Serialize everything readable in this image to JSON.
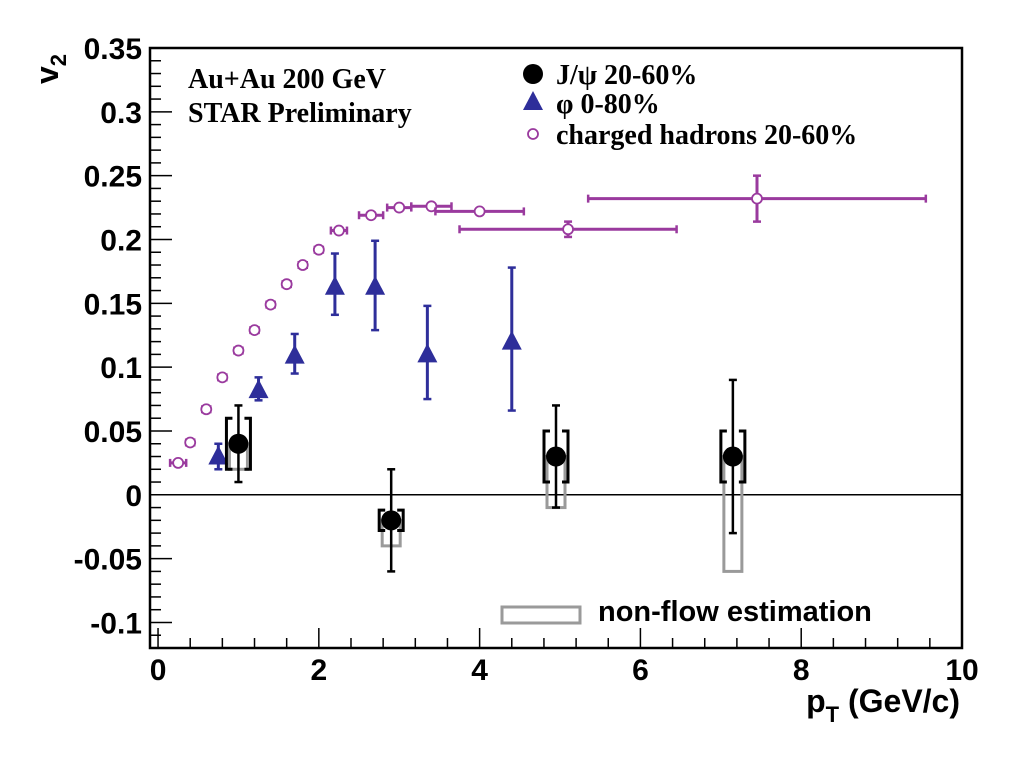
{
  "chart_data": {
    "type": "scatter",
    "title": "",
    "xlabel": "p_T (GeV/c)",
    "ylabel": "v_2",
    "xlabel_parts": {
      "main": "p",
      "sub": "T",
      "unit": " (GeV/c)"
    },
    "ylabel_parts": {
      "main": "v",
      "sub": "2"
    },
    "xlim": [
      -0.1,
      10.0
    ],
    "ylim": [
      -0.12,
      0.35
    ],
    "x_ticks": [
      0,
      2,
      4,
      6,
      8,
      10
    ],
    "x_tick_labels": [
      "0",
      "2",
      "4",
      "6",
      "8",
      "10"
    ],
    "y_ticks": [
      -0.1,
      -0.05,
      0,
      0.05,
      0.1,
      0.15,
      0.2,
      0.25,
      0.3,
      0.35
    ],
    "y_tick_labels": [
      "-0.1",
      "-0.05",
      "0",
      "0.05",
      "0.1",
      "0.15",
      "0.2",
      "0.25",
      "0.3",
      "0.35"
    ],
    "annotations": [
      "Au+Au 200 GeV",
      "STAR Preliminary"
    ],
    "legend_position": "top-right",
    "nonflow_label": "non-flow estimation",
    "colors": {
      "jpsi": "#000000",
      "phi": "#2e2e9a",
      "hadrons": "#9a3a9e",
      "nonflow": "#9a9a9a"
    },
    "series": [
      {
        "name": "J/ψ 20-60%",
        "marker": "filled-circle",
        "points": [
          {
            "x": 1.0,
            "y": 0.04,
            "x_err": 0.0,
            "y_err_low": 0.03,
            "y_err_high": 0.03,
            "sys_low": 0.02,
            "sys_high": 0.06,
            "nonflow_low": 0.02,
            "nonflow_high": 0.04
          },
          {
            "x": 2.9,
            "y": -0.02,
            "x_err": 0.0,
            "y_err_low": 0.04,
            "y_err_high": 0.04,
            "sys_low": -0.028,
            "sys_high": -0.012,
            "nonflow_low": -0.04,
            "nonflow_high": -0.02
          },
          {
            "x": 4.95,
            "y": 0.03,
            "x_err": 0.0,
            "y_err_low": 0.04,
            "y_err_high": 0.04,
            "sys_low": 0.01,
            "sys_high": 0.05,
            "nonflow_low": -0.01,
            "nonflow_high": 0.03
          },
          {
            "x": 7.15,
            "y": 0.03,
            "x_err": 0.0,
            "y_err_low": 0.06,
            "y_err_high": 0.06,
            "sys_low": 0.01,
            "sys_high": 0.05,
            "nonflow_low": -0.06,
            "nonflow_high": 0.03
          }
        ]
      },
      {
        "name": "φ 0-80%",
        "marker": "filled-triangle",
        "points": [
          {
            "x": 0.75,
            "y": 0.03,
            "y_err_low": 0.01,
            "y_err_high": 0.01
          },
          {
            "x": 1.25,
            "y": 0.082,
            "y_err_low": 0.008,
            "y_err_high": 0.01
          },
          {
            "x": 1.7,
            "y": 0.109,
            "y_err_low": 0.014,
            "y_err_high": 0.017
          },
          {
            "x": 2.2,
            "y": 0.163,
            "y_err_low": 0.022,
            "y_err_high": 0.026
          },
          {
            "x": 2.7,
            "y": 0.163,
            "y_err_low": 0.034,
            "y_err_high": 0.036
          },
          {
            "x": 3.35,
            "y": 0.11,
            "y_err_low": 0.035,
            "y_err_high": 0.038
          },
          {
            "x": 4.4,
            "y": 0.12,
            "y_err_low": 0.054,
            "y_err_high": 0.058
          }
        ]
      },
      {
        "name": "charged hadrons 20-60%",
        "marker": "open-circle",
        "points": [
          {
            "x": 0.25,
            "y": 0.025,
            "x_err": 0.1
          },
          {
            "x": 0.4,
            "y": 0.041,
            "x_err": 0.05
          },
          {
            "x": 0.6,
            "y": 0.067,
            "x_err": 0.05
          },
          {
            "x": 0.8,
            "y": 0.092,
            "x_err": 0.05
          },
          {
            "x": 1.0,
            "y": 0.113,
            "x_err": 0.05
          },
          {
            "x": 1.2,
            "y": 0.129,
            "x_err": 0.05
          },
          {
            "x": 1.4,
            "y": 0.149,
            "x_err": 0.05
          },
          {
            "x": 1.6,
            "y": 0.165,
            "x_err": 0.05
          },
          {
            "x": 1.8,
            "y": 0.18,
            "x_err": 0.05
          },
          {
            "x": 2.0,
            "y": 0.192,
            "x_err": 0.05
          },
          {
            "x": 2.25,
            "y": 0.207,
            "x_err": 0.1
          },
          {
            "x": 2.65,
            "y": 0.219,
            "x_err": 0.15
          },
          {
            "x": 3.0,
            "y": 0.225,
            "x_err": 0.15
          },
          {
            "x": 3.4,
            "y": 0.226,
            "x_err": 0.25
          },
          {
            "x": 4.0,
            "y": 0.222,
            "x_err": 0.55
          },
          {
            "x": 5.1,
            "y": 0.208,
            "x_err": 1.35,
            "y_err_low": 0.006,
            "y_err_high": 0.006
          },
          {
            "x": 7.45,
            "y": 0.232,
            "x_err": 2.1,
            "y_err_low": 0.018,
            "y_err_high": 0.018
          }
        ]
      }
    ]
  }
}
